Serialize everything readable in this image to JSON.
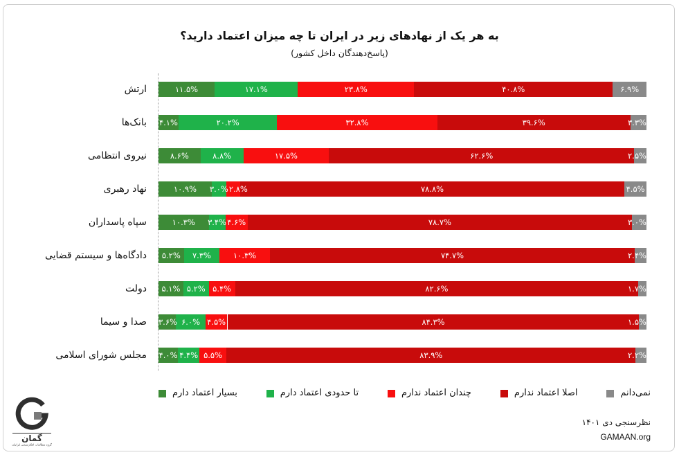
{
  "chart_data": {
    "type": "bar",
    "orientation": "horizontal",
    "stacked": true,
    "normalized": true,
    "title": "به هر یک از نهادهای زیر در ایران تا چه میزان اعتماد دارید؟",
    "subtitle": "(پاسخ‌دهندگان داخل کشور)",
    "xlabel": "",
    "ylabel": "",
    "xlim": [
      0,
      100
    ],
    "grid": false,
    "legend": "bottom",
    "categories": [
      "ارتش",
      "بانک‌ها",
      "نیروی انتظامی",
      "نهاد رهبری",
      "سپاه پاسداران",
      "دادگاه‌ها و سیستم قضایی",
      "دولت",
      "صدا و سیما",
      "مجلس شورای اسلامی"
    ],
    "series": [
      {
        "name": "بسیار اعتماد دارم",
        "color": "#3d8b37",
        "values": [
          11.5,
          4.1,
          8.6,
          10.9,
          10.3,
          5.2,
          5.1,
          3.6,
          4.0
        ],
        "labels": [
          "۱۱.۵%",
          "۴.۱%",
          "۸.۶%",
          "۱۰.۹%",
          "۱۰.۳%",
          "۵.۲%",
          "۵.۱%",
          "۳.۶%",
          "۴.۰%"
        ]
      },
      {
        "name": "تا حدودی اعتماد دارم",
        "color": "#1fb24a",
        "values": [
          17.1,
          20.2,
          8.8,
          3.0,
          3.4,
          7.3,
          5.2,
          6.0,
          4.4
        ],
        "labels": [
          "۱۷.۱%",
          "۲۰.۲%",
          "۸.۸%",
          "۳.۰%",
          "۳.۴%",
          "۷.۳%",
          "۵.۲%",
          "۶.۰%",
          "۴.۴%"
        ]
      },
      {
        "name": "چندان اعتماد ندارم",
        "color": "#f80f0f",
        "values": [
          23.8,
          32.8,
          17.5,
          2.8,
          4.6,
          10.3,
          5.4,
          4.5,
          5.5
        ],
        "labels": [
          "۲۳.۸%",
          "۳۲.۸%",
          "۱۷.۵%",
          "۲.۸%",
          "۴.۶%",
          "۱۰.۳%",
          "۵.۴%",
          "۴.۵%",
          "۵.۵%"
        ]
      },
      {
        "name": "اصلا اعتماد ندارم",
        "color": "#c80b0b",
        "values": [
          40.8,
          39.6,
          62.6,
          78.8,
          78.7,
          74.7,
          82.6,
          84.3,
          83.9
        ],
        "labels": [
          "۴۰.۸%",
          "۳۹.۶%",
          "۶۲.۶%",
          "۷۸.۸%",
          "۷۸.۷%",
          "۷۴.۷%",
          "۸۲.۶%",
          "۸۴.۳%",
          "۸۳.۹%"
        ]
      },
      {
        "name": "نمی‌دانم",
        "color": "#898989",
        "values": [
          6.9,
          3.3,
          2.5,
          4.5,
          3.0,
          2.4,
          1.7,
          1.5,
          2.2
        ],
        "labels": [
          "۶.۹%",
          "۳.۳%",
          "۲.۵%",
          "۴.۵%",
          "۳.۰%",
          "۲.۴%",
          "۱.۷%",
          "۱.۵%",
          "۲.۲%"
        ]
      }
    ]
  },
  "footer": {
    "survey": "نظرسنجی دی ۱۴۰۱",
    "site": "GAMAAN.org"
  },
  "logo": {
    "icon": "gamaan-logo-icon",
    "name": "گمان",
    "tagline": "گروه مطالعات افکارسنجی ایرانیان"
  }
}
